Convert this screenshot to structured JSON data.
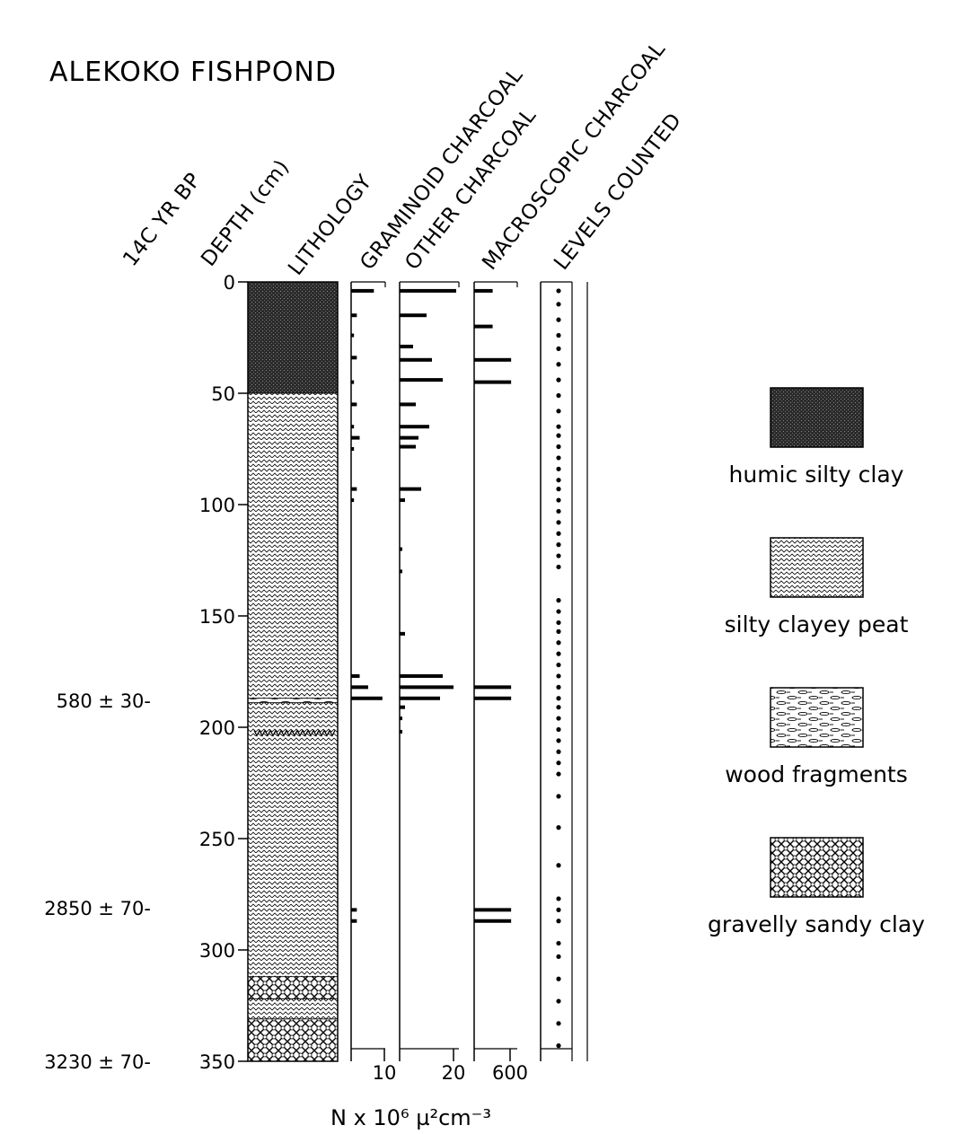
{
  "title": "ALEKOKO FISHPOND",
  "column_headers": {
    "age": "14C YR BP",
    "depth": "DEPTH (cm)",
    "lithology": "LITHOLOGY",
    "graminoid": "GRAMINOID CHARCOAL",
    "other": "OTHER CHARCOAL",
    "macroscopic": "MACROSCOPIC CHARCOAL",
    "levels": "LEVELS COUNTED"
  },
  "x_axis_label": "N x 10⁶ µ²cm⁻³",
  "colors": {
    "ink": "#000000",
    "background": "#ffffff"
  },
  "chart_data": {
    "type": "bar",
    "orientation": "horizontal",
    "title": "ALEKOKO FISHPOND",
    "ylabel": "DEPTH (cm)",
    "xlabel": "N x 10⁶ µ²cm⁻³",
    "ylim": [
      0,
      350
    ],
    "y_inverted": true,
    "depth_ticks": [
      0,
      50,
      100,
      150,
      200,
      250,
      300,
      350
    ],
    "depth_tick_labels": [
      "0",
      "50",
      "100",
      "150",
      "200",
      "250",
      "300",
      "350"
    ],
    "radiocarbon_dates": [
      {
        "depth": 188,
        "label": "580 ± 30"
      },
      {
        "depth": 281,
        "label": "2850 ± 70"
      },
      {
        "depth": 350,
        "label": "3230 ± 70"
      }
    ],
    "lithology_units": [
      {
        "top": 0,
        "bottom": 50,
        "type": "humic silty clay"
      },
      {
        "top": 50,
        "bottom": 187,
        "type": "silty clayey peat"
      },
      {
        "top": 187,
        "bottom": 189,
        "type": "wood fragments"
      },
      {
        "top": 189,
        "bottom": 312,
        "type": "silty clayey peat"
      },
      {
        "top": 312,
        "bottom": 322,
        "type": "gravelly sandy clay"
      },
      {
        "top": 322,
        "bottom": 331,
        "type": "silty clayey peat"
      },
      {
        "top": 331,
        "bottom": 350,
        "type": "gravelly sandy clay"
      }
    ],
    "lithology_marker_depth": 203,
    "legend": [
      {
        "type": "humic silty clay",
        "label": "humic silty clay"
      },
      {
        "type": "silty clayey peat",
        "label": "silty clayey peat"
      },
      {
        "type": "wood fragments",
        "label": "wood fragments"
      },
      {
        "type": "gravelly sandy clay",
        "label": "gravelly sandy clay"
      }
    ],
    "series": [
      {
        "key": "graminoid",
        "name": "GRAMINOID CHARCOAL",
        "xlim": [
          0,
          12
        ],
        "tick_label": "10",
        "depths": [
          4,
          15,
          24,
          34,
          45,
          55,
          65,
          70,
          75,
          93,
          98,
          177,
          182,
          187,
          282,
          287
        ],
        "values": [
          8,
          2,
          1,
          2,
          1,
          2,
          1,
          3,
          1,
          2,
          1,
          3,
          6,
          11,
          2,
          2
        ]
      },
      {
        "key": "other",
        "name": "OTHER CHARCOAL",
        "xlim": [
          0,
          22
        ],
        "tick_label": "20",
        "depths": [
          4,
          15,
          29,
          35,
          44,
          55,
          65,
          70,
          74,
          93,
          98,
          120,
          130,
          158,
          177,
          182,
          187,
          191,
          196,
          202
        ],
        "values": [
          21,
          10,
          5,
          12,
          16,
          6,
          11,
          7,
          6,
          8,
          2,
          1,
          1,
          2,
          16,
          20,
          15,
          2,
          1,
          1
        ]
      },
      {
        "key": "macroscopic",
        "name": "MACROSCOPIC CHARCOAL",
        "xlim": [
          0,
          700
        ],
        "tick_label": "600",
        "depths": [
          4,
          20,
          35,
          45,
          182,
          187,
          282,
          287
        ],
        "values": [
          300,
          300,
          600,
          600,
          600,
          600,
          600,
          600
        ]
      }
    ],
    "levels_counted": [
      4,
      10,
      17,
      24,
      30,
      37,
      44,
      51,
      58,
      65,
      69,
      74,
      79,
      84,
      89,
      93,
      98,
      103,
      108,
      113,
      118,
      123,
      128,
      143,
      148,
      153,
      157,
      162,
      167,
      172,
      177,
      182,
      187,
      191,
      196,
      201,
      206,
      211,
      216,
      221,
      231,
      245,
      262,
      277,
      282,
      287,
      297,
      303,
      313,
      323,
      333,
      343
    ]
  }
}
